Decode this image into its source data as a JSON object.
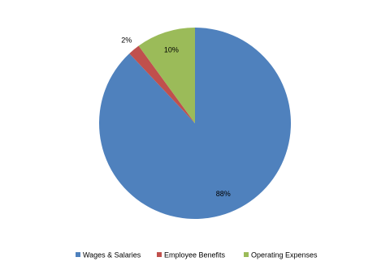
{
  "chart_data": {
    "type": "pie",
    "categories": [
      "Wages & Salaries",
      "Employee Benefits",
      "Operating Expenses"
    ],
    "values": [
      88,
      2,
      10
    ],
    "value_labels": [
      "88%",
      "2%",
      "10%"
    ],
    "colors": [
      "#4f81bd",
      "#c0504d",
      "#9bbb59"
    ]
  }
}
